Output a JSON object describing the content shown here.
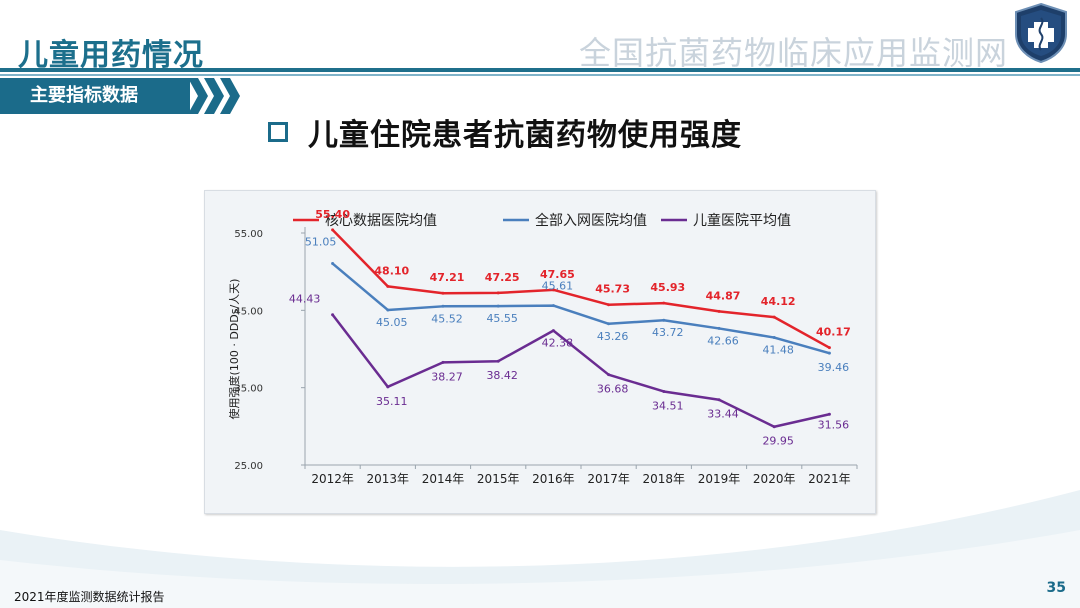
{
  "header": {
    "page_title": "儿童用药情况",
    "org_name": "全国抗菌药物临床应用监测网",
    "section_tag": "主要指标数据"
  },
  "slide_heading": "儿童住院患者抗菌药物使用强度",
  "footer": {
    "report_name": "2021年度监测数据统计报告",
    "page_number": "35"
  },
  "colors": {
    "brand": "#1b6b8a",
    "series_red": "#e3242b",
    "series_blue": "#4a7fbd",
    "series_purple": "#6a2c91"
  },
  "icons": [
    "hospital-logo-icon",
    "square-bullet-icon",
    "chevron-icon"
  ],
  "chart_data": {
    "type": "line",
    "ylabel": "使用强度(100 · DDDs/人天)",
    "xlabel": "",
    "ylim": [
      25,
      55
    ],
    "yticks": [
      "25.00",
      "35.00",
      "45.00",
      "55.00"
    ],
    "categories": [
      "2012年",
      "2013年",
      "2014年",
      "2015年",
      "2016年",
      "2017年",
      "2018年",
      "2019年",
      "2020年",
      "2021年"
    ],
    "legend_position": "top",
    "grid": false,
    "series": [
      {
        "name": "核心数据医院均值",
        "values": [
          55.4,
          48.1,
          47.21,
          47.25,
          47.65,
          45.73,
          45.93,
          44.87,
          44.12,
          40.17
        ],
        "labels": [
          "55.40",
          "48.10",
          "47.21",
          "47.25",
          "47.65",
          "45.73",
          "45.93",
          "44.87",
          "44.12",
          "40.17"
        ]
      },
      {
        "name": "全部入网医院均值",
        "values": [
          51.05,
          45.05,
          45.52,
          45.55,
          45.61,
          43.26,
          43.72,
          42.66,
          41.48,
          39.46
        ],
        "labels": [
          "51.05",
          "45.05",
          "45.52",
          "45.55",
          "45.61",
          "43.26",
          "43.72",
          "42.66",
          "41.48",
          "39.46"
        ]
      },
      {
        "name": "儿童医院平均值",
        "values": [
          44.43,
          35.11,
          38.27,
          38.42,
          42.38,
          36.68,
          34.51,
          33.44,
          29.95,
          31.56
        ],
        "labels": [
          "44.43",
          "35.11",
          "38.27",
          "38.42",
          "42.38",
          "36.68",
          "34.51",
          "33.44",
          "29.95",
          "31.56"
        ]
      }
    ]
  }
}
